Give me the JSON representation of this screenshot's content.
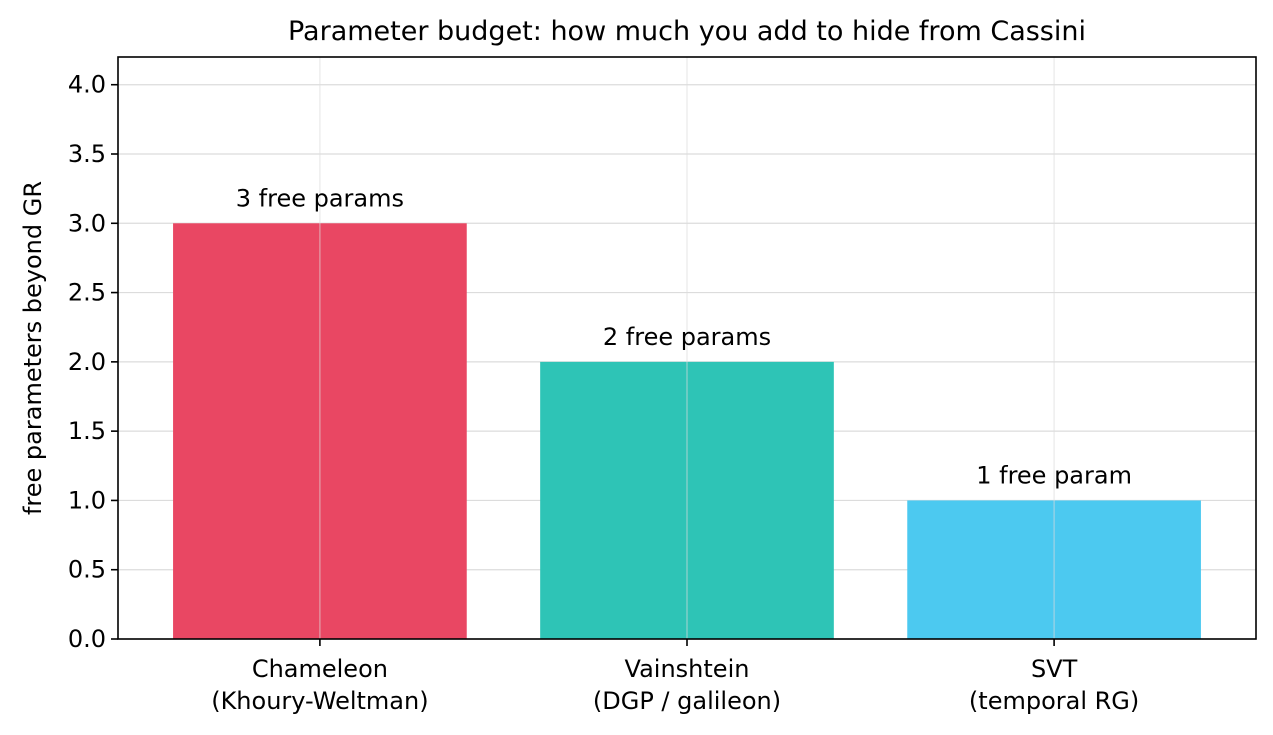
{
  "chart_data": {
    "type": "bar",
    "title": "Parameter budget: how much you add to hide from Cassini",
    "xlabel": "",
    "ylabel": "free parameters beyond GR",
    "categories": [
      [
        "Chameleon",
        "(Khoury-Weltman)"
      ],
      [
        "Vainshtein",
        "(DGP / galileon)"
      ],
      [
        "SVT",
        "(temporal RG)"
      ]
    ],
    "values": [
      3,
      2,
      1
    ],
    "bar_labels": [
      "3 free params",
      "2 free params",
      "1 free param"
    ],
    "colors": [
      "#e94763",
      "#2ec4b6",
      "#4cc9f0"
    ],
    "ylim": [
      0,
      4.2
    ],
    "yticks": [
      "0.0",
      "0.5",
      "1.0",
      "1.5",
      "2.0",
      "2.5",
      "3.0",
      "3.5",
      "4.0"
    ],
    "ytick_values": [
      0,
      0.5,
      1.0,
      1.5,
      2.0,
      2.5,
      3.0,
      3.5,
      4.0
    ],
    "grid": true,
    "legend": "none"
  }
}
